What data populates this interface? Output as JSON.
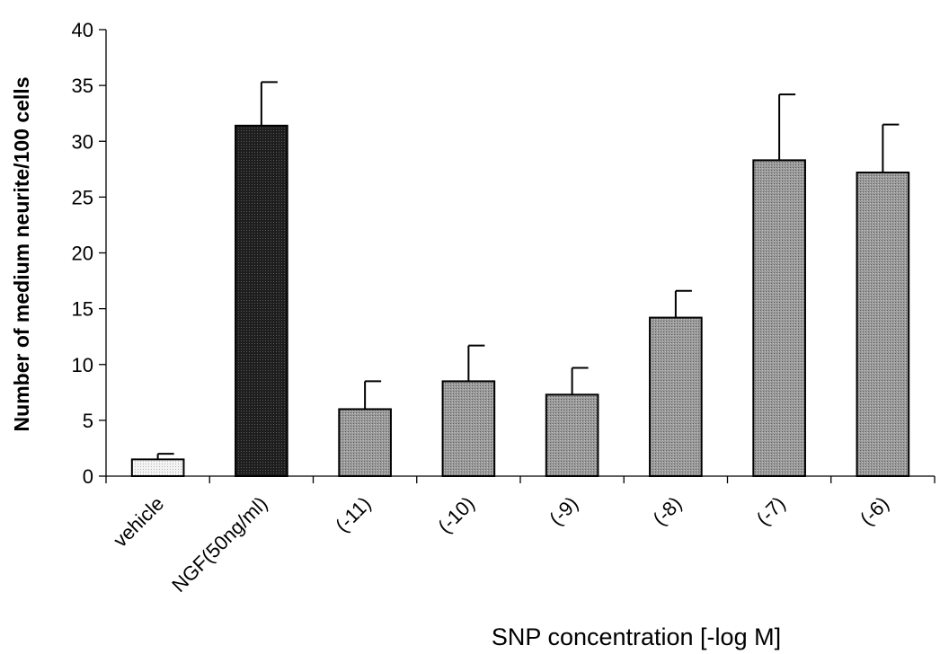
{
  "chart_data": {
    "type": "bar",
    "categories": [
      "vehicle",
      "NGF(50ng/ml)",
      "(-11)",
      "(-10)",
      "(-9)",
      "(-8)",
      "(-7)",
      "(-6)"
    ],
    "values": [
      1.5,
      31.4,
      6.0,
      8.5,
      7.3,
      14.2,
      28.3,
      27.2
    ],
    "error": [
      0.5,
      3.9,
      2.5,
      3.2,
      2.4,
      2.4,
      5.9,
      4.3
    ],
    "fills": [
      "light-dotted",
      "dark-dotted",
      "medium-dotted",
      "medium-dotted",
      "medium-dotted",
      "medium-dotted",
      "medium-dotted",
      "medium-dotted"
    ],
    "title": "",
    "xlabel": "SNP concentration [-log M]",
    "ylabel": "Number of medium neurite/100 cells",
    "ylim": [
      0,
      40
    ],
    "yticks": [
      "0",
      "5",
      "10",
      "15",
      "20",
      "25",
      "30",
      "35",
      "40"
    ],
    "grid": false,
    "legend": "none",
    "colors": {
      "light": "#ececec",
      "dark": "#2a2a2a",
      "medium": "#8c8c8c",
      "stroke": "#000000"
    }
  }
}
